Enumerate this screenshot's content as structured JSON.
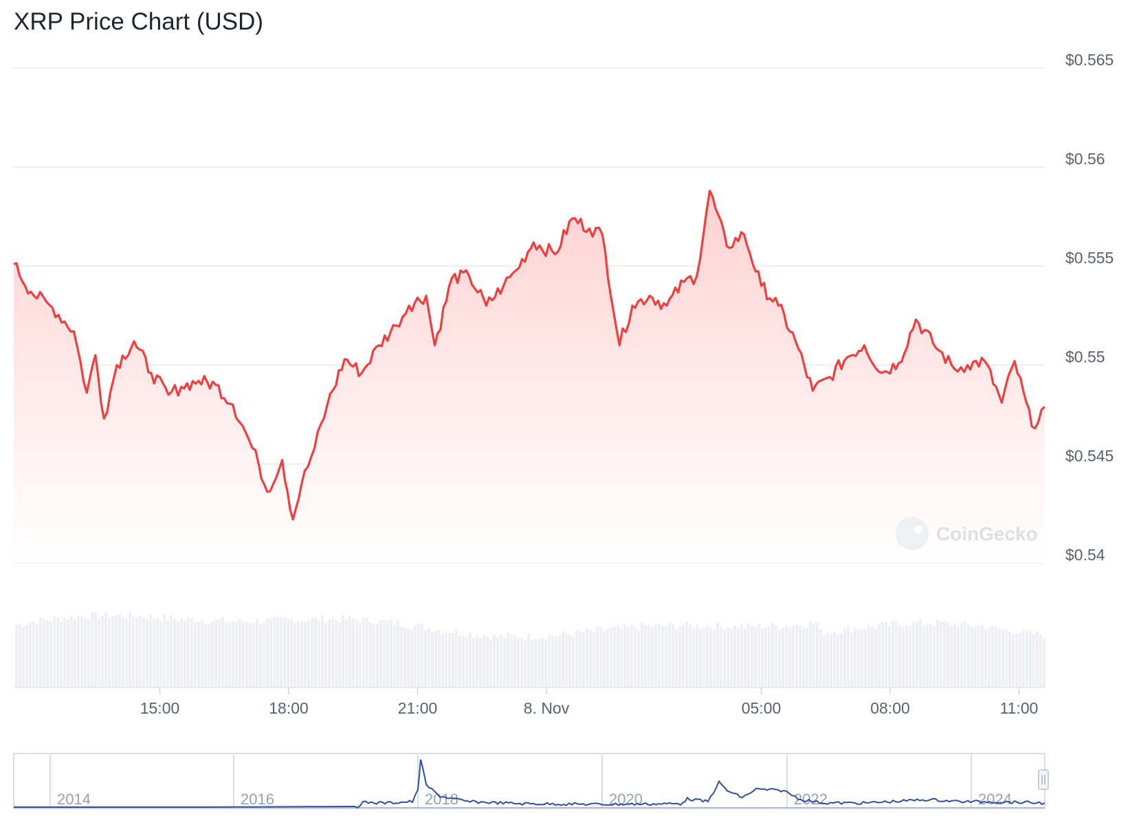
{
  "chart_data": {
    "type": "line",
    "title": "XRP Price Chart (USD)",
    "currency": "USD",
    "y_tick_labels": [
      "$0.54",
      "$0.545",
      "$0.55",
      "$0.555",
      "$0.56",
      "$0.565"
    ],
    "y_ticks": [
      0.54,
      0.545,
      0.55,
      0.555,
      0.56,
      0.565
    ],
    "ylim": [
      0.54,
      0.565
    ],
    "x_tick_labels": [
      "15:00",
      "18:00",
      "21:00",
      "8. Nov",
      "05:00",
      "08:00",
      "11:00"
    ],
    "x_tick_hours": [
      15,
      18,
      21,
      24,
      29,
      32,
      35
    ],
    "xlim_hours": [
      11.6,
      35.6
    ],
    "grid": true,
    "colors": {
      "line": "#f23d3d",
      "fill": "#ffd4d4",
      "volume": "#eef0f3",
      "navigator": "#2c4fa3",
      "grid": "#e6e8eb"
    },
    "series": [
      {
        "type": "line",
        "x_hours": [
          11.6,
          12.0,
          12.5,
          13.0,
          13.3,
          13.5,
          13.7,
          14.0,
          14.4,
          14.8,
          15.2,
          15.5,
          15.9,
          16.3,
          16.7,
          17.0,
          17.3,
          17.5,
          17.85,
          18.1,
          18.3,
          18.6,
          18.9,
          19.3,
          19.7,
          20.1,
          20.5,
          20.8,
          21.2,
          21.4,
          21.8,
          22.2,
          22.6,
          23.0,
          23.3,
          23.7,
          24.2,
          24.6,
          25.0,
          25.3,
          25.7,
          26.0,
          26.4,
          26.8,
          27.2,
          27.5,
          27.8,
          28.2,
          28.6,
          29.0,
          29.4,
          29.8,
          30.2,
          30.6,
          31.0,
          31.4,
          31.8,
          32.2,
          32.6,
          33.0,
          33.5,
          33.8,
          34.2,
          34.6,
          34.9,
          35.3,
          35.6
        ],
        "y": [
          0.5551,
          0.5537,
          0.5529,
          0.5517,
          0.5486,
          0.5505,
          0.5473,
          0.55,
          0.5512,
          0.5496,
          0.5485,
          0.5489,
          0.5492,
          0.549,
          0.548,
          0.5466,
          0.545,
          0.5436,
          0.5452,
          0.5422,
          0.544,
          0.5458,
          0.548,
          0.5503,
          0.5496,
          0.551,
          0.552,
          0.553,
          0.5535,
          0.551,
          0.5544,
          0.5545,
          0.553,
          0.554,
          0.5548,
          0.5562,
          0.5556,
          0.5574,
          0.5569,
          0.5566,
          0.551,
          0.553,
          0.5535,
          0.553,
          0.5542,
          0.5545,
          0.5588,
          0.556,
          0.5566,
          0.554,
          0.553,
          0.5512,
          0.5487,
          0.5494,
          0.5504,
          0.551,
          0.5496,
          0.5501,
          0.5523,
          0.5511,
          0.5498,
          0.55,
          0.5502,
          0.5481,
          0.5502,
          0.5469,
          0.5479
        ]
      }
    ],
    "navigator": {
      "x_tick_labels": [
        "2014",
        "2016",
        "2018",
        "2020",
        "2022",
        "2024"
      ]
    },
    "watermark": "CoinGecko"
  }
}
